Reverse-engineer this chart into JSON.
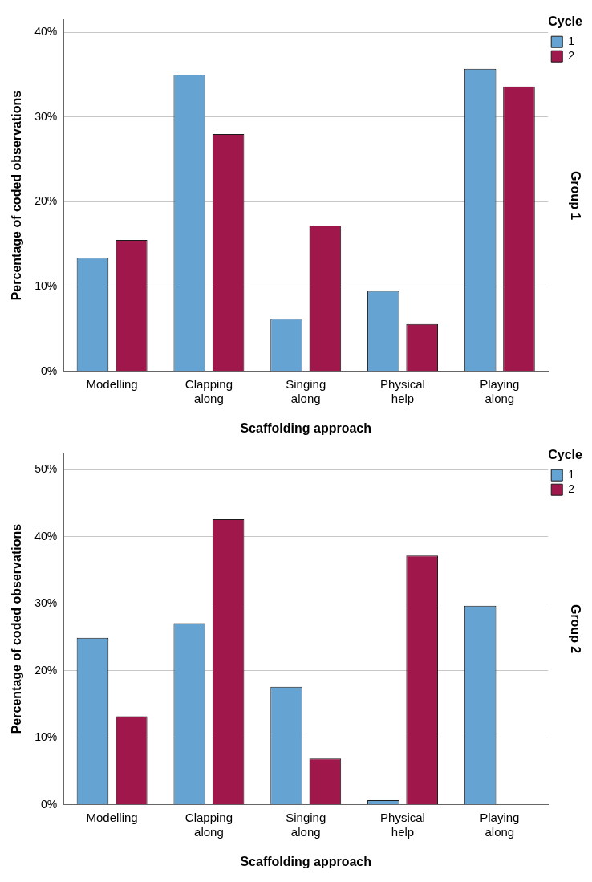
{
  "chart_data": [
    {
      "type": "bar",
      "xlabel": "Scaffolding approach",
      "ylabel": "Percentage of coded observations",
      "legend_title": "Cycle",
      "annotations": [
        "Group 1"
      ],
      "categories": [
        "Modelling",
        "Clapping along",
        "Singing along",
        "Physical help",
        "Playing along"
      ],
      "series": [
        {
          "name": "1",
          "color": "#65a3d3",
          "values": [
            13.4,
            35.0,
            6.2,
            9.5,
            35.7
          ]
        },
        {
          "name": "2",
          "color": "#a0174c",
          "values": [
            15.5,
            28.0,
            17.2,
            5.6,
            33.6
          ]
        }
      ],
      "ylim": [
        0,
        41.5
      ],
      "yticks": [
        {
          "value": 0,
          "label": "0%"
        },
        {
          "value": 10,
          "label": "10%"
        },
        {
          "value": 20,
          "label": "20%"
        },
        {
          "value": 30,
          "label": "30%"
        },
        {
          "value": 40,
          "label": "40%"
        }
      ],
      "grid": "y",
      "legend": "top right"
    },
    {
      "type": "bar",
      "xlabel": "Scaffolding approach",
      "ylabel": "Percentage of coded observations",
      "legend_title": "Cycle",
      "annotations": [
        "Group 2"
      ],
      "categories": [
        "Modelling",
        "Clapping along",
        "Singing along",
        "Physical help",
        "Playing along"
      ],
      "series": [
        {
          "name": "1",
          "color": "#65a3d3",
          "values": [
            24.9,
            27.1,
            17.6,
            0.7,
            29.7
          ]
        },
        {
          "name": "2",
          "color": "#a0174c",
          "values": [
            13.2,
            42.6,
            6.9,
            37.2,
            null
          ]
        }
      ],
      "ylim": [
        0,
        52.5
      ],
      "yticks": [
        {
          "value": 0,
          "label": "0%"
        },
        {
          "value": 10,
          "label": "10%"
        },
        {
          "value": 20,
          "label": "20%"
        },
        {
          "value": 30,
          "label": "30%"
        },
        {
          "value": 40,
          "label": "40%"
        },
        {
          "value": 50,
          "label": "50%"
        }
      ],
      "grid": "y",
      "legend": "top right"
    }
  ]
}
